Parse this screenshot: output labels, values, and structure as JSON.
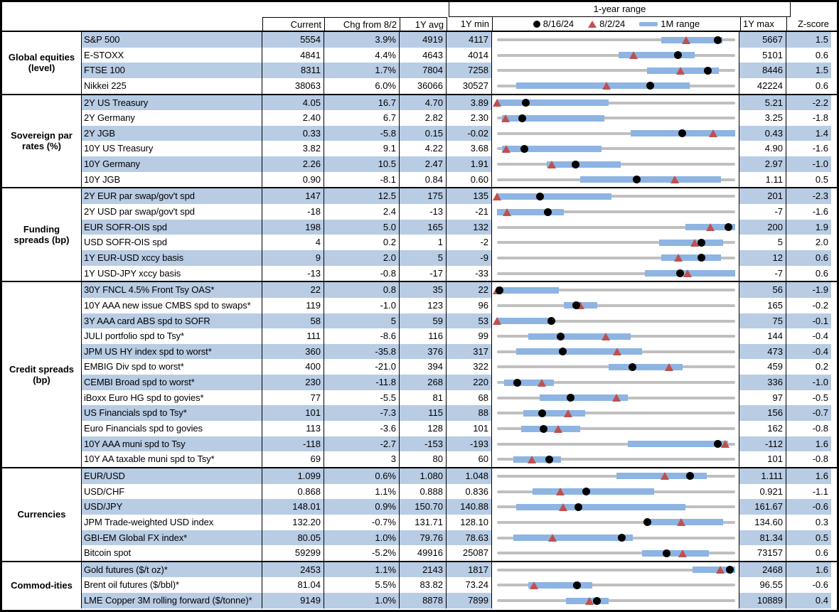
{
  "header": {
    "range_title": "1-year range",
    "col_current": "Current",
    "col_chg": "Chg from 8/2",
    "col_avg": "1Y avg",
    "col_min": "1Y min",
    "col_max": "1Y max",
    "col_z": "Z-score",
    "legend": {
      "dot_label": "8/16/24",
      "tri_label": "8/2/24",
      "bar_label": "1M range"
    }
  },
  "colors": {
    "stripe": "#b8cce4",
    "range_bar": "#8db4e2",
    "track": "#bfbfbf",
    "triangle": "#c0504d",
    "dot": "#000000"
  },
  "chart_data": {
    "type": "table",
    "columns": [
      "Current",
      "Chg from 8/2",
      "1Y avg",
      "1Y min",
      "1-year range",
      "1Y max",
      "Z-score"
    ],
    "range_chart_note": "range fractions are 0-1 positions along the 1Y min-max track; dot=8/16/24, tri=8/2/24, bar=1M range",
    "sections": [
      {
        "category": "Global equities (level)",
        "rows": [
          {
            "label": "S&P 500",
            "current": "5554",
            "chg": "3.9%",
            "avg": "4919",
            "min": "4117",
            "max": "5667",
            "z": "1.5",
            "range": {
              "bar": [
                0.69,
                0.945
              ],
              "dot": 0.927,
              "tri": 0.793
            }
          },
          {
            "label": "E-STOXX",
            "current": "4841",
            "chg": "4.4%",
            "avg": "4643",
            "min": "4014",
            "max": "5101",
            "z": "0.6",
            "range": {
              "bar": [
                0.51,
                0.83
              ],
              "dot": 0.761,
              "tri": 0.573
            }
          },
          {
            "label": "FTSE 100",
            "current": "8311",
            "chg": "1.7%",
            "avg": "7804",
            "min": "7258",
            "max": "8446",
            "z": "1.5",
            "range": {
              "bar": [
                0.63,
                0.93
              ],
              "dot": 0.886,
              "tri": 0.769
            }
          },
          {
            "label": "Nikkei 225",
            "current": "38063",
            "chg": "6.0%",
            "avg": "36066",
            "min": "30527",
            "max": "42224",
            "z": "0.6",
            "range": {
              "bar": [
                0.08,
                0.81
              ],
              "dot": 0.644,
              "tri": 0.46
            }
          }
        ]
      },
      {
        "category": "Sovereign par rates (%)",
        "rows": [
          {
            "label": "2Y US Treasury",
            "current": "4.05",
            "chg": "16.7",
            "avg": "4.70",
            "min": "3.89",
            "max": "5.21",
            "z": "-2.2",
            "range": {
              "bar": [
                0.0,
                0.47
              ],
              "dot": 0.121,
              "tri": 0.0
            }
          },
          {
            "label": "2Y Germany",
            "current": "2.40",
            "chg": "6.7",
            "avg": "2.82",
            "min": "2.30",
            "max": "3.25",
            "z": "-1.8",
            "range": {
              "bar": [
                0.02,
                0.45
              ],
              "dot": 0.105,
              "tri": 0.035
            }
          },
          {
            "label": "2Y JGB",
            "current": "0.33",
            "chg": "-5.8",
            "avg": "0.15",
            "min": "-0.02",
            "max": "0.43",
            "z": "1.4",
            "range": {
              "bar": [
                0.56,
                1.0
              ],
              "dot": 0.778,
              "tri": 0.907
            }
          },
          {
            "label": "10Y US Treasury",
            "current": "3.82",
            "chg": "9.1",
            "avg": "4.22",
            "min": "3.68",
            "max": "4.90",
            "z": "-1.6",
            "range": {
              "bar": [
                0.02,
                0.44
              ],
              "dot": 0.115,
              "tri": 0.04
            }
          },
          {
            "label": "10Y Germany",
            "current": "2.26",
            "chg": "10.5",
            "avg": "2.47",
            "min": "1.91",
            "max": "2.97",
            "z": "-1.0",
            "range": {
              "bar": [
                0.21,
                0.52
              ],
              "dot": 0.33,
              "tri": 0.231
            }
          },
          {
            "label": "10Y JGB",
            "current": "0.90",
            "chg": "-8.1",
            "avg": "0.84",
            "min": "0.60",
            "max": "1.11",
            "z": "0.5",
            "range": {
              "bar": [
                0.35,
                0.94
              ],
              "dot": 0.588,
              "tri": 0.747
            }
          }
        ]
      },
      {
        "category": "Funding spreads (bp)",
        "rows": [
          {
            "label": "2Y EUR par swap/gov't spd",
            "current": "147",
            "chg": "12.5",
            "avg": "175",
            "min": "135",
            "max": "201",
            "z": "-2.3",
            "range": {
              "bar": [
                0.0,
                0.48
              ],
              "dot": 0.182,
              "tri": 0.0
            }
          },
          {
            "label": "2Y USD par swap/gov't spd",
            "current": "-18",
            "chg": "2.4",
            "avg": "-13",
            "min": "-21",
            "max": "-7",
            "z": "-1.6",
            "range": {
              "bar": [
                0.0,
                0.28
              ],
              "dot": 0.214,
              "tri": 0.043
            }
          },
          {
            "label": "EUR SOFR-OIS spd",
            "current": "198",
            "chg": "5.0",
            "avg": "165",
            "min": "132",
            "max": "200",
            "z": "1.9",
            "range": {
              "bar": [
                0.79,
                1.0
              ],
              "dot": 0.971,
              "tri": 0.897
            }
          },
          {
            "label": "USD SOFR-OIS spd",
            "current": "4",
            "chg": "0.2",
            "avg": "1",
            "min": "-2",
            "max": "5",
            "z": "2.0",
            "range": {
              "bar": [
                0.68,
                0.95
              ],
              "dot": 0.857,
              "tri": 0.829
            }
          },
          {
            "label": "1Y EUR-USD xccy basis",
            "current": "9",
            "chg": "2.0",
            "avg": "5",
            "min": "-9",
            "max": "12",
            "z": "0.6",
            "range": {
              "bar": [
                0.69,
                0.94
              ],
              "dot": 0.857,
              "tri": 0.762
            }
          },
          {
            "label": "1Y USD-JPY xccy basis",
            "current": "-13",
            "chg": "-0.8",
            "avg": "-17",
            "min": "-33",
            "max": "-7",
            "z": "0.6",
            "range": {
              "bar": [
                0.62,
                1.0
              ],
              "dot": 0.769,
              "tri": 0.8
            }
          }
        ]
      },
      {
        "category": "Credit spreads (bp)",
        "rows": [
          {
            "label": "30Y FNCL 4.5% Front Tsy OAS*",
            "current": "22",
            "chg": "0.8",
            "avg": "35",
            "min": "22",
            "max": "56",
            "z": "-1.9",
            "range": {
              "bar": [
                0.0,
                0.26
              ],
              "dot": 0.01,
              "tri": 0.0
            }
          },
          {
            "label": "10Y AAA new issue CMBS spd to swaps*",
            "current": "119",
            "chg": "-1.0",
            "avg": "123",
            "min": "96",
            "max": "165",
            "z": "-0.2",
            "range": {
              "bar": [
                0.28,
                0.42
              ],
              "dot": 0.333,
              "tri": 0.348
            }
          },
          {
            "label": "3Y AAA card ABS spd to SOFR",
            "current": "58",
            "chg": "5",
            "avg": "59",
            "min": "53",
            "max": "75",
            "z": "-0.1",
            "range": {
              "bar": [
                0.0,
                0.24
              ],
              "dot": 0.227,
              "tri": 0.0
            }
          },
          {
            "label": "JULI portfolio spd to Tsy*",
            "current": "111",
            "chg": "-8.6",
            "avg": "116",
            "min": "99",
            "max": "144",
            "z": "-0.4",
            "range": {
              "bar": [
                0.13,
                0.56
              ],
              "dot": 0.267,
              "tri": 0.458
            }
          },
          {
            "label": "JPM US HY index spd to worst*",
            "current": "360",
            "chg": "-35.8",
            "avg": "376",
            "min": "317",
            "max": "473",
            "z": "-0.4",
            "range": {
              "bar": [
                0.08,
                0.61
              ],
              "dot": 0.276,
              "tri": 0.505
            }
          },
          {
            "label": "EMBIG Div spd to worst*",
            "current": "400",
            "chg": "-21.0",
            "avg": "394",
            "min": "322",
            "max": "459",
            "z": "0.2",
            "range": {
              "bar": [
                0.47,
                0.78
              ],
              "dot": 0.569,
              "tri": 0.723
            }
          },
          {
            "label": "CEMBI Broad spd to worst*",
            "current": "230",
            "chg": "-11.8",
            "avg": "268",
            "min": "220",
            "max": "336",
            "z": "-1.0",
            "range": {
              "bar": [
                0.03,
                0.24
              ],
              "dot": 0.086,
              "tri": 0.188
            }
          },
          {
            "label": "iBoxx Euro HG spd to govies*",
            "current": "77",
            "chg": "-5.5",
            "avg": "81",
            "min": "68",
            "max": "97",
            "z": "-0.5",
            "range": {
              "bar": [
                0.18,
                0.55
              ],
              "dot": 0.31,
              "tri": 0.5
            }
          },
          {
            "label": "US Financials spd to Tsy*",
            "current": "101",
            "chg": "-7.3",
            "avg": "115",
            "min": "88",
            "max": "156",
            "z": "-0.7",
            "range": {
              "bar": [
                0.11,
                0.37
              ],
              "dot": 0.191,
              "tri": 0.299
            }
          },
          {
            "label": "Euro Financials spd to govies",
            "current": "113",
            "chg": "-3.6",
            "avg": "128",
            "min": "101",
            "max": "162",
            "z": "-0.8",
            "range": {
              "bar": [
                0.1,
                0.35
              ],
              "dot": 0.197,
              "tri": 0.256
            }
          },
          {
            "label": "10Y AAA muni spd to Tsy",
            "current": "-118",
            "chg": "-2.7",
            "avg": "-153",
            "min": "-193",
            "max": "-112",
            "z": "1.6",
            "range": {
              "bar": [
                0.55,
                0.97
              ],
              "dot": 0.926,
              "tri": 0.959
            }
          },
          {
            "label": "10Y AA taxable muni spd to Tsy*",
            "current": "69",
            "chg": "3",
            "avg": "80",
            "min": "60",
            "max": "101",
            "z": "-0.8",
            "range": {
              "bar": [
                0.07,
                0.27
              ],
              "dot": 0.22,
              "tri": 0.146
            }
          }
        ]
      },
      {
        "category": "Currencies",
        "rows": [
          {
            "label": "EUR/USD",
            "current": "1.099",
            "chg": "0.6%",
            "avg": "1.080",
            "min": "1.048",
            "max": "1.111",
            "z": "1.6",
            "range": {
              "bar": [
                0.5,
                0.88
              ],
              "dot": 0.81,
              "tri": 0.705
            }
          },
          {
            "label": "USD/CHF",
            "current": "0.868",
            "chg": "1.1%",
            "avg": "0.888",
            "min": "0.836",
            "max": "0.921",
            "z": "-1.1",
            "range": {
              "bar": [
                0.15,
                0.66
              ],
              "dot": 0.376,
              "tri": 0.265
            }
          },
          {
            "label": "USD/JPY",
            "current": "148.01",
            "chg": "0.9%",
            "avg": "150.70",
            "min": "140.88",
            "max": "161.67",
            "z": "-0.6",
            "range": {
              "bar": [
                0.08,
                0.79
              ],
              "dot": 0.343,
              "tri": 0.279
            }
          },
          {
            "label": "JPM Trade-weighted USD index",
            "current": "132.20",
            "chg": "-0.7%",
            "avg": "131.71",
            "min": "128.10",
            "max": "134.60",
            "z": "0.3",
            "range": {
              "bar": [
                0.63,
                0.95
              ],
              "dot": 0.631,
              "tri": 0.774
            }
          },
          {
            "label": "GBI-EM Global FX index*",
            "current": "80.05",
            "chg": "1.0%",
            "avg": "79.76",
            "min": "78.63",
            "max": "81.34",
            "z": "0.5",
            "range": {
              "bar": [
                0.07,
                0.57
              ],
              "dot": 0.524,
              "tri": 0.232
            }
          },
          {
            "label": "Bitcoin spot",
            "current": "59299",
            "chg": "-5.2%",
            "avg": "49916",
            "min": "25087",
            "max": "73157",
            "z": "0.6",
            "range": {
              "bar": [
                0.61,
                0.89
              ],
              "dot": 0.712,
              "tri": 0.779
            }
          }
        ]
      },
      {
        "category": "Commod-ities",
        "rows": [
          {
            "label": "Gold futures ($/t oz)*",
            "current": "2453",
            "chg": "1.1%",
            "avg": "2143",
            "min": "1817",
            "max": "2468",
            "z": "1.6",
            "range": {
              "bar": [
                0.82,
                1.0
              ],
              "dot": 0.977,
              "tri": 0.936
            }
          },
          {
            "label": "Brent oil futures ($/bbl)*",
            "current": "81.04",
            "chg": "5.5%",
            "avg": "83.82",
            "min": "73.24",
            "max": "96.55",
            "z": "-0.6",
            "range": {
              "bar": [
                0.13,
                0.4
              ],
              "dot": 0.335,
              "tri": 0.154
            }
          },
          {
            "label": "LME Copper 3M rolling forward ($/tonne)*",
            "current": "9149",
            "chg": "1.0%",
            "avg": "8878",
            "min": "7899",
            "max": "10889",
            "z": "0.4",
            "range": {
              "bar": [
                0.29,
                0.47
              ],
              "dot": 0.418,
              "tri": 0.388
            }
          }
        ]
      }
    ]
  }
}
